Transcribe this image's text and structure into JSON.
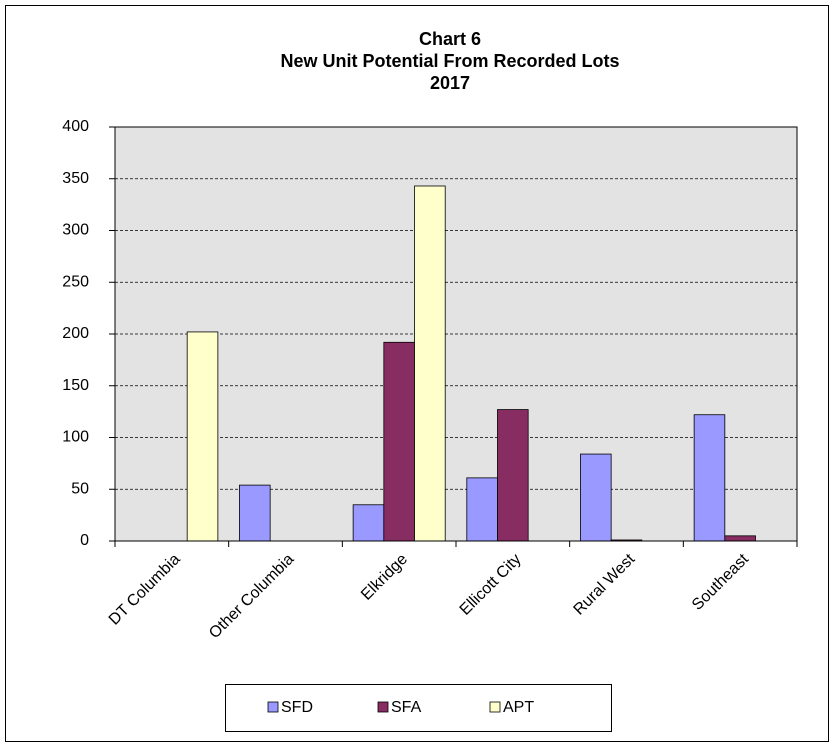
{
  "chart_data": {
    "type": "bar",
    "title": [
      "Chart 6",
      "New Unit Potential From Recorded Lots",
      "2017"
    ],
    "categories": [
      "DT Columbia",
      "Other Columbia",
      "Elkridge",
      "Ellicott City",
      "Rural West",
      "Southeast"
    ],
    "series": [
      {
        "name": "SFD",
        "color": "#9999ff",
        "values": [
          0,
          54,
          35,
          61,
          84,
          122
        ]
      },
      {
        "name": "SFA",
        "color": "#882d61",
        "values": [
          0,
          0,
          192,
          127,
          1,
          5
        ]
      },
      {
        "name": "APT",
        "color": "#ffffcc",
        "values": [
          202,
          0,
          343,
          0,
          0,
          0
        ]
      }
    ],
    "ylim": [
      0,
      400
    ],
    "yticks": [
      0,
      50,
      100,
      150,
      200,
      250,
      300,
      350,
      400
    ],
    "grid": true,
    "legend": "bottom"
  }
}
